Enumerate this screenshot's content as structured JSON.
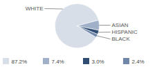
{
  "chart_data": {
    "type": "pie",
    "categories": [
      "WHITE",
      "ASIAN",
      "HISPANIC",
      "BLACK"
    ],
    "values": [
      87.2,
      7.4,
      3.0,
      2.4
    ],
    "value_labels": [
      "87.2%",
      "7.4%",
      "3.0%",
      "2.4%"
    ],
    "colors": [
      "#d8dee8",
      "#9fb0c8",
      "#2f4d73",
      "#7087a9"
    ],
    "data_labels": true
  }
}
